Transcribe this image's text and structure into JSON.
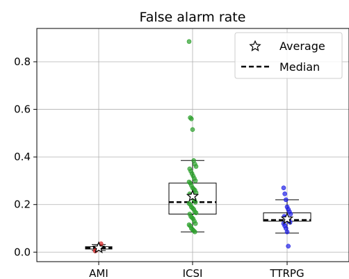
{
  "chart_data": {
    "type": "box",
    "title": "False alarm rate",
    "categories": [
      "AMI",
      "ICSI",
      "TTRPG"
    ],
    "ylim": [
      -0.04,
      0.94
    ],
    "yticks": [
      0.0,
      0.2,
      0.4,
      0.6,
      0.8
    ],
    "ytick_labels": [
      "0.0",
      "0.2",
      "0.4",
      "0.6",
      "0.8"
    ],
    "grid": true,
    "legend": {
      "position": "top-right",
      "entries": [
        {
          "label": "Average",
          "marker": "star"
        },
        {
          "label": "Median",
          "marker": "dashed-line"
        }
      ]
    },
    "series": [
      {
        "category": "AMI",
        "color": "#d62728",
        "box": {
          "q1": 0.013,
          "median": 0.018,
          "q3": 0.023,
          "whisker_low": 0.007,
          "whisker_high": 0.032
        },
        "mean": 0.018,
        "points": [
          0.005,
          0.01,
          0.015,
          0.02,
          0.025,
          0.035
        ]
      },
      {
        "category": "ICSI",
        "color": "#2ca02c",
        "box": {
          "q1": 0.16,
          "median": 0.21,
          "q3": 0.29,
          "whisker_low": 0.085,
          "whisker_high": 0.385
        },
        "mean": 0.235,
        "points": [
          0.885,
          0.565,
          0.56,
          0.515,
          0.385,
          0.37,
          0.36,
          0.35,
          0.34,
          0.33,
          0.32,
          0.31,
          0.3,
          0.295,
          0.29,
          0.28,
          0.27,
          0.265,
          0.26,
          0.25,
          0.245,
          0.24,
          0.23,
          0.225,
          0.22,
          0.21,
          0.205,
          0.2,
          0.19,
          0.185,
          0.18,
          0.17,
          0.165,
          0.16,
          0.15,
          0.145,
          0.14,
          0.13,
          0.12,
          0.115,
          0.11,
          0.1,
          0.095,
          0.09,
          0.085
        ]
      },
      {
        "category": "TTRPG",
        "color": "#1f1fe6",
        "box": {
          "q1": 0.13,
          "median": 0.135,
          "q3": 0.165,
          "whisker_low": 0.08,
          "whisker_high": 0.22
        },
        "mean": 0.14,
        "points": [
          0.27,
          0.245,
          0.22,
          0.19,
          0.18,
          0.17,
          0.16,
          0.15,
          0.145,
          0.14,
          0.135,
          0.13,
          0.125,
          0.12,
          0.11,
          0.1,
          0.085,
          0.025
        ]
      }
    ]
  }
}
